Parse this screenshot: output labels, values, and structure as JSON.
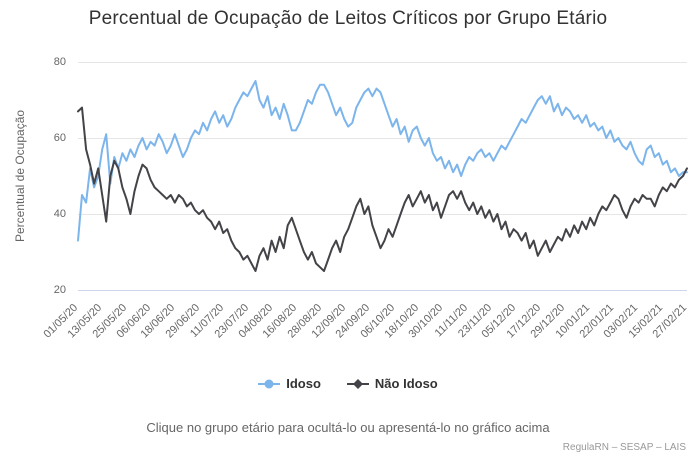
{
  "title": "Percentual de Ocupação de Leitos Críticos por Grupo Etário",
  "caption": "Clique no grupo etário para ocultá-lo ou apresentá-lo no gráfico acima",
  "credits": "RegulaRN – SESAP – LAIS",
  "colors": {
    "grid": "#e6e6e6",
    "axis_line": "#ccd6eb",
    "title_text": "#333333",
    "axis_text": "#666666",
    "credits_text": "#999999"
  },
  "chart_data": {
    "type": "line",
    "title": "Percentual de Ocupação de Leitos Críticos por Grupo Etário",
    "xlabel": "",
    "ylabel": "Percentual de Ocupação",
    "ylim": [
      20,
      80
    ],
    "yticks": [
      20,
      40,
      60,
      80
    ],
    "grid": true,
    "legend_position": "bottom-center",
    "x_tick_labels": [
      "01/05/20",
      "13/05/20",
      "25/05/20",
      "06/06/20",
      "18/06/20",
      "29/06/20",
      "11/07/20",
      "23/07/20",
      "04/08/20",
      "16/08/20",
      "28/08/20",
      "12/09/20",
      "24/09/20",
      "06/10/20",
      "18/10/20",
      "30/10/20",
      "11/11/20",
      "23/11/20",
      "05/12/20",
      "17/12/20",
      "29/12/20",
      "10/01/21",
      "22/01/21",
      "03/02/21",
      "15/02/21",
      "27/02/21"
    ],
    "x_note": "daily series from 01/05/20 to 27/02/21, values sampled every 2 days",
    "series": [
      {
        "name": "Idoso",
        "color": "#7cb5ec",
        "marker": "circle",
        "values": [
          33,
          45,
          43,
          52,
          47,
          50,
          57,
          61,
          48,
          55,
          52,
          56,
          54,
          57,
          55,
          58,
          60,
          57,
          59,
          58,
          61,
          59,
          56,
          58,
          61,
          58,
          55,
          57,
          60,
          62,
          61,
          64,
          62,
          65,
          67,
          64,
          66,
          63,
          65,
          68,
          70,
          72,
          71,
          73,
          75,
          70,
          68,
          71,
          66,
          68,
          65,
          69,
          66,
          62,
          62,
          64,
          67,
          70,
          69,
          72,
          74,
          74,
          72,
          69,
          66,
          68,
          65,
          63,
          64,
          68,
          70,
          72,
          73,
          71,
          73,
          72,
          69,
          66,
          63,
          65,
          61,
          63,
          59,
          62,
          63,
          60,
          58,
          60,
          56,
          54,
          55,
          52,
          54,
          51,
          53,
          50,
          53,
          55,
          54,
          56,
          57,
          55,
          56,
          54,
          56,
          58,
          57,
          59,
          61,
          63,
          65,
          64,
          66,
          68,
          70,
          71,
          69,
          71,
          67,
          69,
          66,
          68,
          67,
          65,
          66,
          64,
          66,
          63,
          64,
          62,
          63,
          60,
          62,
          59,
          60,
          58,
          57,
          59,
          56,
          54,
          53,
          57,
          58,
          55,
          56,
          53,
          54,
          51,
          52,
          50,
          51,
          51
        ]
      },
      {
        "name": "Não Idoso",
        "color": "#434348",
        "marker": "diamond",
        "values": [
          67,
          68,
          57,
          53,
          48,
          52,
          45,
          38,
          50,
          54,
          52,
          47,
          44,
          40,
          46,
          50,
          53,
          52,
          49,
          47,
          46,
          45,
          44,
          45,
          43,
          45,
          44,
          42,
          43,
          41,
          40,
          41,
          39,
          38,
          36,
          38,
          35,
          36,
          33,
          31,
          30,
          28,
          29,
          27,
          25,
          29,
          31,
          28,
          33,
          30,
          34,
          31,
          37,
          39,
          36,
          33,
          30,
          28,
          30,
          27,
          26,
          25,
          28,
          31,
          33,
          30,
          34,
          36,
          39,
          42,
          44,
          40,
          42,
          37,
          34,
          31,
          33,
          36,
          34,
          37,
          40,
          43,
          45,
          42,
          44,
          46,
          43,
          45,
          41,
          43,
          39,
          42,
          45,
          46,
          44,
          46,
          43,
          41,
          43,
          40,
          42,
          39,
          41,
          38,
          40,
          36,
          38,
          34,
          36,
          35,
          33,
          35,
          31,
          33,
          29,
          31,
          33,
          30,
          32,
          34,
          33,
          36,
          34,
          37,
          35,
          38,
          36,
          39,
          37,
          40,
          42,
          41,
          43,
          45,
          44,
          41,
          39,
          42,
          44,
          43,
          45,
          44,
          44,
          42,
          45,
          47,
          46,
          48,
          47,
          49,
          50,
          52
        ]
      }
    ]
  }
}
